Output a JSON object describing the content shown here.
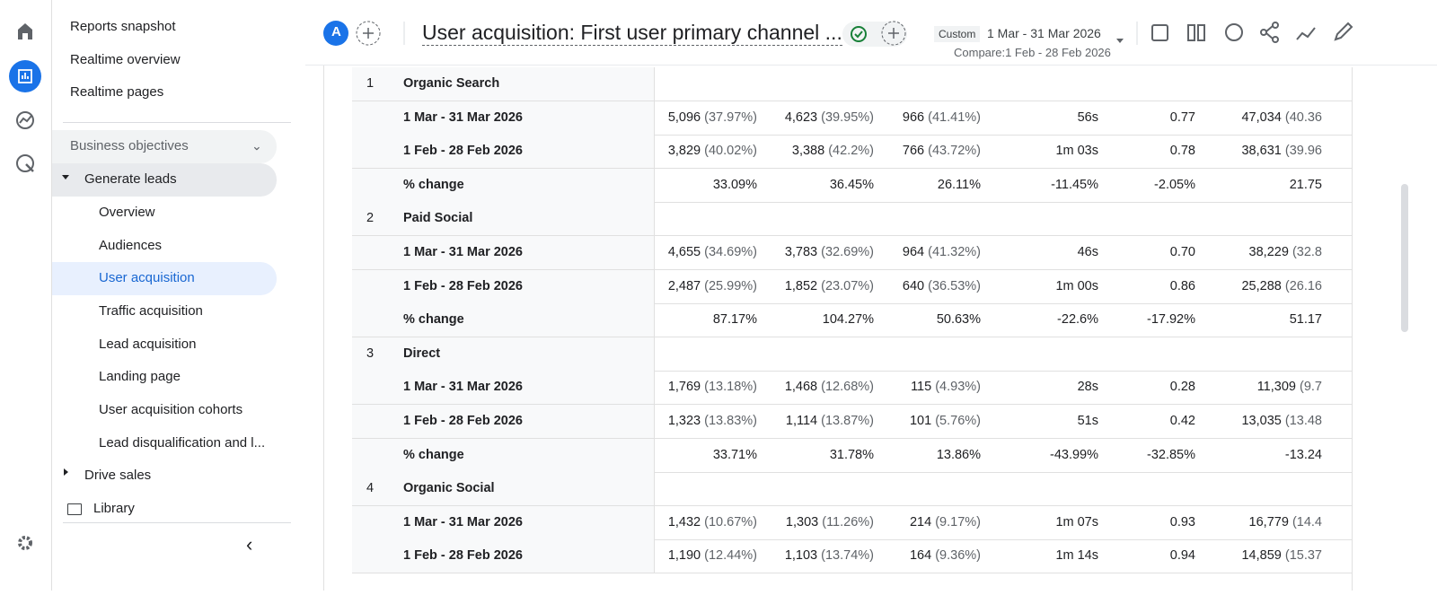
{
  "nav": {
    "top": [
      "Reports snapshot",
      "Realtime overview",
      "Realtime pages"
    ],
    "section": {
      "title": "Business objectives",
      "groups": [
        {
          "title": "Generate leads",
          "items": [
            "Overview",
            "Audiences",
            "User acquisition",
            "Traffic acquisition",
            "Lead acquisition",
            "Landing page",
            "User acquisition cohorts",
            "Lead disqualification and l..."
          ]
        },
        {
          "title": "Drive sales"
        }
      ]
    },
    "library": "Library"
  },
  "header": {
    "avatar": "A",
    "title": "User acquisition: First user primary channel ...",
    "date_preset": "Custom",
    "date_range": "1 Mar - 31 Mar 2026",
    "compare": "Compare:1 Feb - 28 Feb 2026"
  },
  "table": {
    "groups": [
      {
        "rank": 1,
        "name": "Organic Search",
        "rows": [
          {
            "label": "1 Mar - 31 Mar 2026",
            "cells": [
              [
                "5,096",
                "(37.97%)"
              ],
              [
                "4,623",
                "(39.95%)"
              ],
              [
                "966",
                "(41.41%)"
              ],
              [
                "56s"
              ],
              [
                "0.77"
              ],
              [
                "47,034",
                "(40.36"
              ]
            ]
          },
          {
            "label": "1 Feb - 28 Feb 2026",
            "cells": [
              [
                "3,829",
                "(40.02%)"
              ],
              [
                "3,388",
                "(42.2%)"
              ],
              [
                "766",
                "(43.72%)"
              ],
              [
                "1m 03s"
              ],
              [
                "0.78"
              ],
              [
                "38,631",
                "(39.96"
              ]
            ]
          },
          {
            "label": "% change",
            "cells": [
              [
                "33.09%"
              ],
              [
                "36.45%"
              ],
              [
                "26.11%"
              ],
              [
                "-11.45%"
              ],
              [
                "-2.05%"
              ],
              [
                "21.75"
              ]
            ]
          }
        ]
      },
      {
        "rank": 2,
        "name": "Paid Social",
        "rows": [
          {
            "label": "1 Mar - 31 Mar 2026",
            "cells": [
              [
                "4,655",
                "(34.69%)"
              ],
              [
                "3,783",
                "(32.69%)"
              ],
              [
                "964",
                "(41.32%)"
              ],
              [
                "46s"
              ],
              [
                "0.70"
              ],
              [
                "38,229",
                "(32.8"
              ]
            ]
          },
          {
            "label": "1 Feb - 28 Feb 2026",
            "cells": [
              [
                "2,487",
                "(25.99%)"
              ],
              [
                "1,852",
                "(23.07%)"
              ],
              [
                "640",
                "(36.53%)"
              ],
              [
                "1m 00s"
              ],
              [
                "0.86"
              ],
              [
                "25,288",
                "(26.16"
              ]
            ]
          },
          {
            "label": "% change",
            "cells": [
              [
                "87.17%"
              ],
              [
                "104.27%"
              ],
              [
                "50.63%"
              ],
              [
                "-22.6%"
              ],
              [
                "-17.92%"
              ],
              [
                "51.17"
              ]
            ]
          }
        ]
      },
      {
        "rank": 3,
        "name": "Direct",
        "rows": [
          {
            "label": "1 Mar - 31 Mar 2026",
            "cells": [
              [
                "1,769",
                "(13.18%)"
              ],
              [
                "1,468",
                "(12.68%)"
              ],
              [
                "115",
                "(4.93%)"
              ],
              [
                "28s"
              ],
              [
                "0.28"
              ],
              [
                "11,309",
                "(9.7"
              ]
            ]
          },
          {
            "label": "1 Feb - 28 Feb 2026",
            "cells": [
              [
                "1,323",
                "(13.83%)"
              ],
              [
                "1,114",
                "(13.87%)"
              ],
              [
                "101",
                "(5.76%)"
              ],
              [
                "51s"
              ],
              [
                "0.42"
              ],
              [
                "13,035",
                "(13.48"
              ]
            ]
          },
          {
            "label": "% change",
            "cells": [
              [
                "33.71%"
              ],
              [
                "31.78%"
              ],
              [
                "13.86%"
              ],
              [
                "-43.99%"
              ],
              [
                "-32.85%"
              ],
              [
                "-13.24"
              ]
            ]
          }
        ]
      },
      {
        "rank": 4,
        "name": "Organic Social",
        "rows": [
          {
            "label": "1 Mar - 31 Mar 2026",
            "cells": [
              [
                "1,432",
                "(10.67%)"
              ],
              [
                "1,303",
                "(11.26%)"
              ],
              [
                "214",
                "(9.17%)"
              ],
              [
                "1m 07s"
              ],
              [
                "0.93"
              ],
              [
                "16,779",
                "(14.4"
              ]
            ]
          },
          {
            "label": "1 Feb - 28 Feb 2026",
            "cells": [
              [
                "1,190",
                "(12.44%)"
              ],
              [
                "1,103",
                "(13.74%)"
              ],
              [
                "164",
                "(9.36%)"
              ],
              [
                "1m 14s"
              ],
              [
                "0.94"
              ],
              [
                "14,859",
                "(15.37"
              ]
            ]
          }
        ]
      }
    ]
  }
}
